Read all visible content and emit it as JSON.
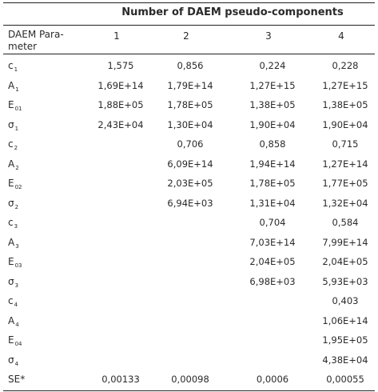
{
  "header": {
    "group_title": "Number of DAEM pseudo-components",
    "param_label_line1": "DAEM Para-",
    "param_label_line2": "meter",
    "columns": [
      "1",
      "2",
      "3",
      "4"
    ]
  },
  "rows": [
    {
      "base": "c",
      "sub": "1",
      "values": [
        "1,575",
        "0,856",
        "0,224",
        "0,228"
      ]
    },
    {
      "base": "A",
      "sub": "1",
      "values": [
        "1,69E+14",
        "1,79E+14",
        "1,27E+15",
        "1,27E+15"
      ]
    },
    {
      "base": "E",
      "sub": "01",
      "values": [
        "1,88E+05",
        "1,78E+05",
        "1,38E+05",
        "1,38E+05"
      ]
    },
    {
      "base": "σ",
      "sub": "1",
      "values": [
        "2,43E+04",
        "1,30E+04",
        "1,90E+04",
        "1,90E+04"
      ]
    },
    {
      "base": "c",
      "sub": "2",
      "values": [
        "",
        "0,706",
        "0,858",
        "0,715"
      ]
    },
    {
      "base": "A",
      "sub": "2",
      "values": [
        "",
        "6,09E+14",
        "1,94E+14",
        "1,27E+14"
      ]
    },
    {
      "base": "E",
      "sub": "02",
      "values": [
        "",
        "2,03E+05",
        "1,78E+05",
        "1,77E+05"
      ]
    },
    {
      "base": "σ",
      "sub": "2",
      "values": [
        "",
        "6,94E+03",
        "1,31E+04",
        "1,32E+04"
      ]
    },
    {
      "base": "c",
      "sub": "3",
      "values": [
        "",
        "",
        "0,704",
        "0,584"
      ]
    },
    {
      "base": "A",
      "sub": "3",
      "values": [
        "",
        "",
        "7,03E+14",
        "7,99E+14"
      ]
    },
    {
      "base": "E",
      "sub": "03",
      "values": [
        "",
        "",
        "2,04E+05",
        "2,04E+05"
      ]
    },
    {
      "base": "σ",
      "sub": "3",
      "values": [
        "",
        "",
        "6,98E+03",
        "5,93E+03"
      ]
    },
    {
      "base": "c",
      "sub": "4",
      "values": [
        "",
        "",
        "",
        "0,403"
      ]
    },
    {
      "base": "A",
      "sub": "4",
      "values": [
        "",
        "",
        "",
        "1,06E+14"
      ]
    },
    {
      "base": "E",
      "sub": "04",
      "values": [
        "",
        "",
        "",
        "1,95E+05"
      ]
    },
    {
      "base": "σ",
      "sub": "4",
      "values": [
        "",
        "",
        "",
        "4,38E+04"
      ]
    },
    {
      "base": "SE*",
      "sub": "",
      "values": [
        "0,00133",
        "0,00098",
        "0,0006",
        "0,00055"
      ]
    }
  ]
}
